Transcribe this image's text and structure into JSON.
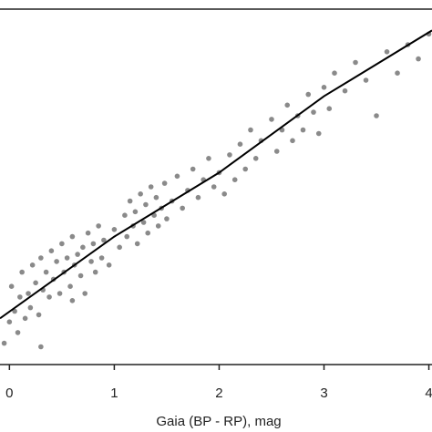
{
  "chart_data": {
    "type": "scatter",
    "xlabel": "Gaia (BP - RP), mag",
    "xlim": [
      -0.09,
      4.03
    ],
    "xticks": [
      0,
      1,
      2,
      3,
      4
    ],
    "ylim": [
      0,
      10
    ],
    "series": [
      {
        "type": "scatter",
        "color": "#8a8a8a",
        "x": [
          -0.05,
          0,
          0.02,
          0.05,
          0.08,
          0.1,
          0.12,
          0.15,
          0.18,
          0.2,
          0.22,
          0.25,
          0.28,
          0.3,
          0.32,
          0.35,
          0.38,
          0.4,
          0.42,
          0.45,
          0.48,
          0.5,
          0.52,
          0.55,
          0.58,
          0.6,
          0.62,
          0.65,
          0.68,
          0.7,
          0.72,
          0.75,
          0.78,
          0.8,
          0.82,
          0.85,
          0.88,
          0.9,
          0.95,
          1.0,
          1.05,
          1.1,
          1.12,
          1.15,
          1.18,
          1.2,
          1.22,
          1.25,
          1.28,
          1.3,
          1.32,
          1.35,
          1.38,
          1.4,
          1.42,
          1.45,
          1.48,
          1.5,
          1.55,
          1.6,
          1.65,
          1.7,
          1.75,
          1.8,
          1.85,
          1.9,
          1.95,
          2.0,
          2.05,
          2.1,
          2.15,
          2.2,
          2.25,
          2.3,
          2.35,
          2.4,
          2.5,
          2.55,
          2.6,
          2.65,
          2.7,
          2.75,
          2.8,
          2.85,
          2.9,
          2.95,
          3.0,
          3.05,
          3.1,
          3.2,
          3.3,
          3.4,
          3.5,
          3.6,
          3.7,
          3.8,
          3.9,
          4.0,
          0.6,
          0.3
        ],
        "y": [
          0.6,
          1.2,
          2.2,
          1.5,
          0.9,
          1.9,
          2.6,
          1.3,
          2.0,
          1.6,
          2.8,
          2.3,
          1.4,
          3.0,
          2.1,
          2.6,
          1.9,
          3.2,
          2.4,
          2.9,
          2.0,
          3.4,
          2.6,
          3.0,
          2.2,
          3.6,
          2.8,
          3.1,
          2.5,
          3.3,
          2.0,
          3.7,
          2.9,
          3.4,
          2.6,
          3.9,
          3.0,
          3.5,
          2.8,
          3.8,
          3.3,
          4.2,
          3.6,
          4.6,
          3.9,
          4.3,
          3.4,
          4.8,
          4.0,
          4.5,
          3.7,
          5.0,
          4.2,
          4.7,
          3.9,
          4.4,
          5.1,
          4.1,
          4.6,
          5.3,
          4.4,
          4.9,
          5.5,
          4.7,
          5.2,
          5.8,
          5.0,
          5.4,
          4.8,
          5.9,
          5.2,
          6.2,
          5.5,
          6.6,
          5.8,
          6.3,
          6.9,
          6.0,
          6.6,
          7.3,
          6.3,
          7.0,
          6.6,
          7.6,
          7.1,
          6.5,
          7.8,
          7.2,
          8.2,
          7.7,
          8.5,
          8.0,
          7.0,
          8.8,
          8.2,
          9.0,
          8.6,
          9.3,
          1.8,
          0.5
        ]
      },
      {
        "type": "line",
        "color": "#000000",
        "x": [
          -0.09,
          1,
          2,
          3,
          4.03
        ],
        "y": [
          1.3,
          3.6,
          5.4,
          7.55,
          9.4
        ]
      }
    ]
  }
}
